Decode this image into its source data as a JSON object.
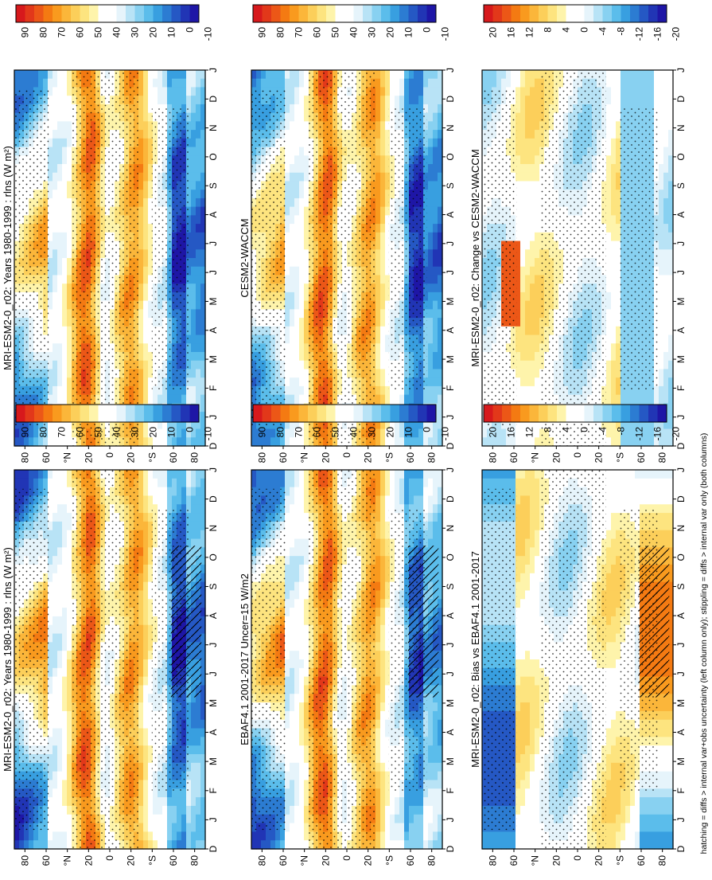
{
  "figure": {
    "footnote": "hatching = diffs > internal var+obs uncertainty (left column only); stippling = diffs > internal var only (both columns)"
  },
  "months": [
    "D",
    "J",
    "F",
    "M",
    "A",
    "M",
    "J",
    "J",
    "A",
    "S",
    "O",
    "N",
    "D",
    "J"
  ],
  "lat_ticks": [
    "80",
    "60",
    "°N",
    "20",
    "0",
    "20",
    "°S",
    "60",
    "80"
  ],
  "colorbars": {
    "abs": {
      "labels": [
        "90",
        "80",
        "70",
        "60",
        "50",
        "40",
        "30",
        "20",
        "10",
        "0",
        "-10"
      ],
      "colors": [
        "#d7191c",
        "#e2381a",
        "#ec5717",
        "#f47a12",
        "#f99a1e",
        "#fbb63a",
        "#fccf5a",
        "#fde47f",
        "#fef4ab",
        "#ffffff",
        "#ffffff",
        "#e6f4fb",
        "#b8e3f6",
        "#88d1f1",
        "#5bbdeb",
        "#389fe0",
        "#2c7cd2",
        "#2558c4",
        "#2135b5",
        "#1e16a6"
      ]
    },
    "diff": {
      "labels": [
        "20",
        "16",
        "12",
        "8",
        "4",
        "0",
        "-4",
        "-8",
        "-12",
        "-16",
        "-20"
      ],
      "colors": [
        "#d7191c",
        "#e2381a",
        "#ec5717",
        "#f47a12",
        "#f99a1e",
        "#fbb63a",
        "#fccf5a",
        "#fde47f",
        "#fef4ab",
        "#ffffff",
        "#ffffff",
        "#e6f4fb",
        "#b8e3f6",
        "#88d1f1",
        "#5bbdeb",
        "#389fe0",
        "#2c7cd2",
        "#2558c4",
        "#2135b5",
        "#1e16a6"
      ]
    }
  },
  "chart_data": [
    {
      "type": "heatmap",
      "panel": "left-top",
      "title": "MRI-ESM2-0_r02: Years 1980-1999 : rlns (W m²)",
      "x": "month",
      "y": "latitude",
      "colorbar": "abs",
      "hatching": true,
      "stippling": true
    },
    {
      "type": "heatmap",
      "panel": "right-top",
      "title": "MRI-ESM2-0_r02: Years 1980-1999 : rlns (W m²)",
      "x": "month",
      "y": "latitude",
      "colorbar": "abs",
      "stippling": true
    },
    {
      "type": "heatmap",
      "panel": "left-middle",
      "title": "EBAF4.1 2001-2017 Uncer=15 W/m2",
      "x": "month",
      "y": "latitude",
      "colorbar": "abs",
      "hatching": true,
      "stippling": true
    },
    {
      "type": "heatmap",
      "panel": "right-middle",
      "title": "CESM2-WACCM",
      "x": "month",
      "y": "latitude",
      "colorbar": "abs",
      "stippling": true
    },
    {
      "type": "heatmap",
      "panel": "left-bottom",
      "title": "MRI-ESM2-0_r02: Bias vs EBAF4.1 2001-2017",
      "x": "month",
      "y": "latitude",
      "colorbar": "diff",
      "hatching": true,
      "stippling": true
    },
    {
      "type": "heatmap",
      "panel": "right-bottom",
      "title": "MRI-ESM2-0_r02: Change vs CESM2-WACCM",
      "x": "month",
      "y": "latitude",
      "colorbar": "diff",
      "stippling": true
    }
  ]
}
